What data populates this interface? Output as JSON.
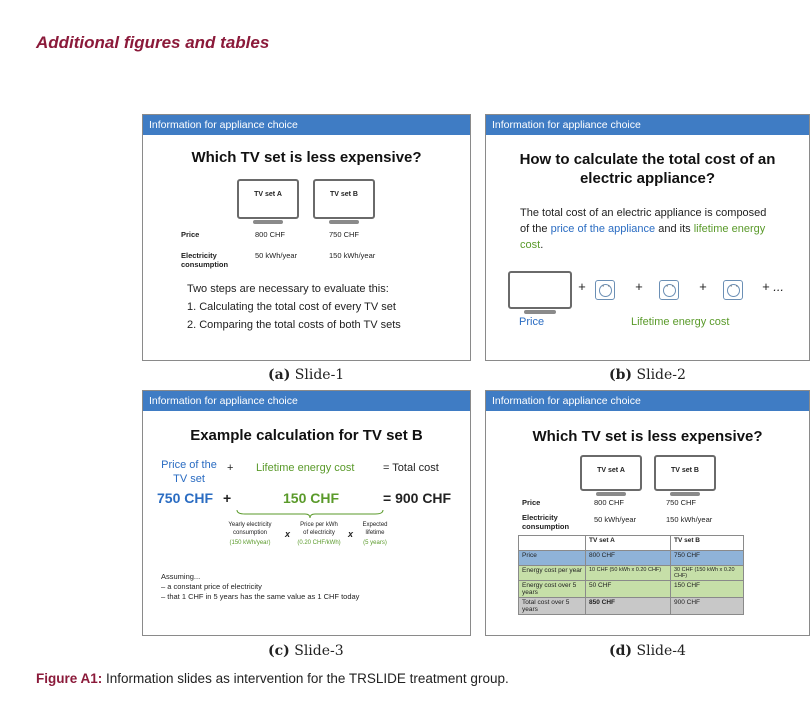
{
  "heading": "Additional figures and tables",
  "slide_bar": "Information for appliance choice",
  "slide1": {
    "title": "Which TV set is less expensive?",
    "tv_a": "TV set A",
    "tv_b": "TV set B",
    "price_label": "Price",
    "price_a": "800 CHF",
    "price_b": "750 CHF",
    "elec_label_1": "Electricity",
    "elec_label_2": "consumption",
    "elec_a": "50 kWh/year",
    "elec_b": "150 kWh/year",
    "steps_intro": "Two steps are necessary to evaluate this:",
    "step1": "1.  Calculating the total cost of every TV set",
    "step2": "2.  Comparing the total costs of both TV sets"
  },
  "slide2": {
    "title_1": "How to calculate the total cost of an",
    "title_2": "electric appliance?",
    "text_1": "The total cost of an electric appliance is composed",
    "text_2a": "of the ",
    "text_2b": "price of the appliance",
    "text_2c": " and its ",
    "text_2d": "lifetime energy",
    "text_3": "cost",
    "text_3end": ".",
    "plus": "+",
    "ellipsis": "+ ...",
    "price_label": "Price",
    "lifetime_label": "Lifetime energy cost"
  },
  "slide3": {
    "title": "Example calculation for TV set B",
    "price_of_1": "Price of the",
    "price_of_2": "TV set",
    "plus": "+",
    "lifetime": "Lifetime energy cost",
    "eq_total": "= Total cost",
    "val_price": "750 CHF",
    "val_energy": "150 CHF",
    "val_total": "= 900 CHF",
    "yearly_1": "Yearly electricity",
    "yearly_2": "consumption",
    "yearly_3": "(150 kWh/year)",
    "times": "x",
    "ppk_1": "Price per kWh",
    "ppk_2": "of electricity",
    "ppk_3": "(0.20 CHF/kWh)",
    "life_1": "Expected",
    "life_2": "lifetime",
    "life_3": "(5 years)",
    "assuming": "Assuming...",
    "assume1": "–   a constant price of electricity",
    "assume2": "–   that 1 CHF in 5 years has the same value as 1 CHF today"
  },
  "slide4": {
    "title": "Which TV set is less expensive?",
    "tv_a": "TV set A",
    "tv_b": "TV set B",
    "price_label": "Price",
    "price_a": "800 CHF",
    "price_b": "750 CHF",
    "elec_label_1": "Electricity",
    "elec_label_2": "consumption",
    "elec_a": "50 kWh/year",
    "elec_b": "150 kWh/year",
    "table": {
      "head": [
        "",
        "TV set A",
        "TV set B"
      ],
      "rows": [
        [
          "Price",
          "800 CHF",
          "750 CHF"
        ],
        [
          "Energy cost per year",
          "10 CHF (50 kWh x 0.20 CHF)",
          "30 CHF (150 kWh x 0.20 CHF)"
        ],
        [
          "Energy cost over 5 years",
          "50 CHF",
          "150 CHF"
        ],
        [
          "Total cost over 5 years",
          "850 CHF",
          "900 CHF"
        ]
      ]
    }
  },
  "captions": {
    "a_lab": "(a)",
    "a_txt": " Slide-1",
    "b_lab": "(b)",
    "b_txt": " Slide-2",
    "c_lab": "(c)",
    "c_txt": " Slide-3",
    "d_lab": "(d)",
    "d_txt": " Slide-4"
  },
  "figure_caption": {
    "label": "Figure A1:",
    "text": " Information slides as intervention for the TRSLIDE treatment group."
  }
}
